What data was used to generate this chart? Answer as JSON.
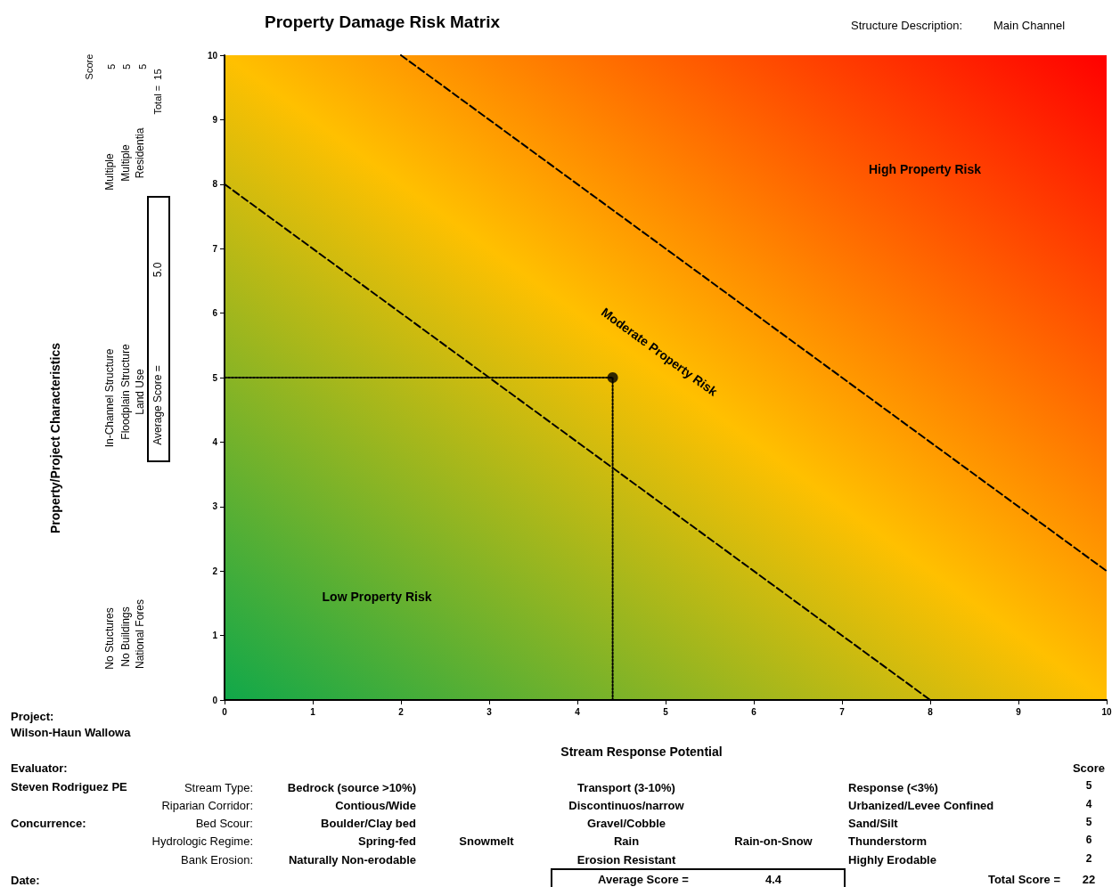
{
  "chart_data": {
    "type": "scatter",
    "title": "Property Damage Risk Matrix",
    "xlabel": "Stream Response Potential",
    "xlim": [
      0,
      10
    ],
    "ylim": [
      0,
      10
    ],
    "xticks": [
      0,
      1,
      2,
      3,
      4,
      5,
      6,
      7,
      8,
      9,
      10
    ],
    "yticks": [
      0,
      1,
      2,
      3,
      4,
      5,
      6,
      7,
      8,
      9,
      10
    ],
    "grid": false,
    "series": [
      {
        "type": "line",
        "x": [
          0,
          8
        ],
        "values": [
          8,
          0
        ],
        "color": "#000000",
        "line_style": "dashed",
        "marker": "none"
      },
      {
        "type": "line",
        "x": [
          2,
          10
        ],
        "values": [
          10,
          2
        ],
        "color": "#000000",
        "line_style": "dashed",
        "marker": "none"
      },
      {
        "type": "line",
        "x": [
          0,
          4.4,
          4.4
        ],
        "values": [
          5,
          5,
          0
        ],
        "color": "#000000",
        "line_style": "dotted",
        "marker": "none"
      },
      {
        "x": [
          4.4
        ],
        "values": [
          5
        ],
        "color": "#000000",
        "marker": "circle"
      }
    ],
    "annotations": [
      "Low Property Risk",
      "Moderate Property Risk",
      "High Property Risk",
      "Property/Project Characteristics",
      "Structure Description:",
      "Main Channel",
      "Score",
      "5",
      "5",
      "5",
      "Total =  15",
      "No Stuctures",
      "In-Channel Structure",
      "Multiple",
      "No Buildings",
      "Floodplain Structure",
      "Multiple",
      "National Fores",
      "Land Use",
      "Residentia",
      "Average Score =",
      "5.0",
      "Project:",
      "Wilson-Haun Wallowa",
      "Evaluator:",
      "Steven Rodriguez PE",
      "Concurrence:",
      "Date:",
      "Stream Type:",
      "Riparian Corridor:",
      "Bed Scour:",
      "Hydrologic Regime:",
      "Bank Erosion:",
      "Bedrock (source >10%)",
      "Contious/Wide",
      "Boulder/Clay bed",
      "Spring-fed",
      "Naturally Non-erodable",
      "Snowmelt",
      "Transport (3-10%)",
      "Discontinuos/narrow",
      "Gravel/Cobble",
      "Rain",
      "Erosion Resistant",
      "Rain-on-Snow",
      "Response (<3%)",
      "Urbanized/Levee Confined",
      "Sand/Silt",
      "Thunderstorm",
      "Highly Erodable",
      "Score",
      "5",
      "4",
      "5",
      "6",
      "2",
      "Average Score =",
      "4.4",
      "Total Score =",
      "22"
    ]
  }
}
